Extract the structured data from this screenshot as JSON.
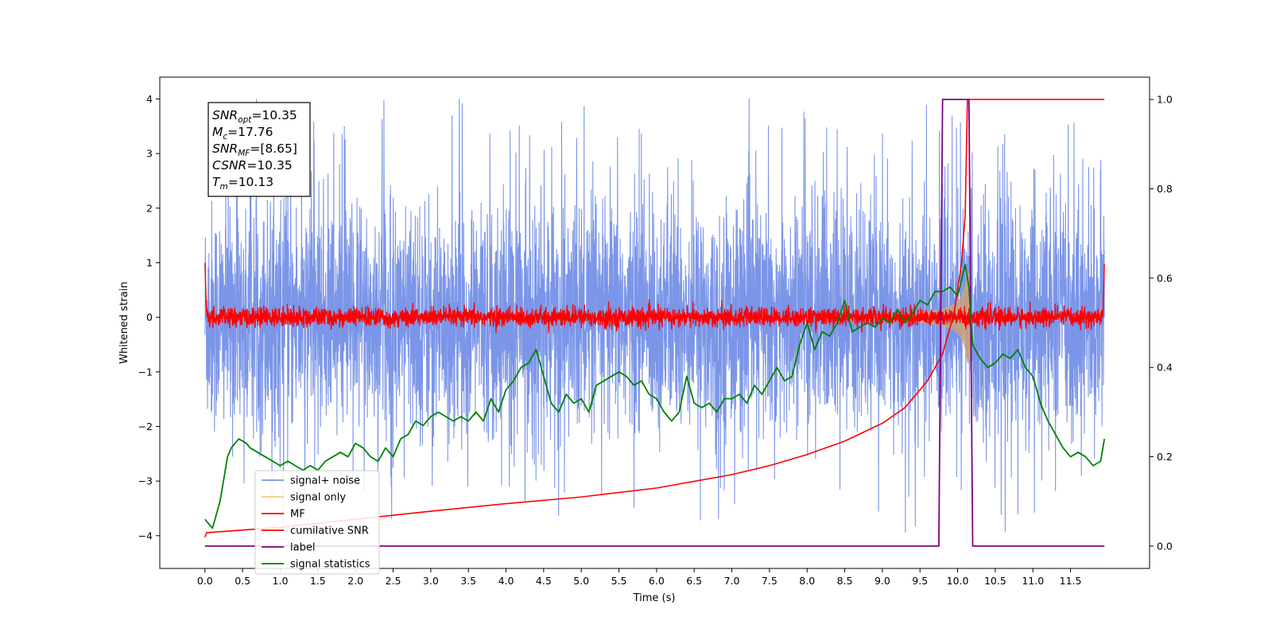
{
  "chart_data": {
    "type": "line",
    "title": "",
    "xlabel": "Time (s)",
    "ylabel": "Whitened strain",
    "xlim": [
      -0.6,
      12.55
    ],
    "ylim": [
      -4.6,
      4.4
    ],
    "y2lim": [
      -0.05,
      1.05
    ],
    "xticks": [
      "0.0",
      "0.5",
      "1.0",
      "1.5",
      "2.0",
      "2.5",
      "3.0",
      "3.5",
      "4.0",
      "4.5",
      "5.0",
      "5.5",
      "6.0",
      "6.5",
      "7.0",
      "7.5",
      "8.0",
      "8.5",
      "9.0",
      "9.5",
      "10.0",
      "10.5",
      "11.0",
      "11.5"
    ],
    "yticks": [
      "4",
      "3",
      "2",
      "1",
      "0",
      "−1",
      "−2",
      "−3",
      "−4"
    ],
    "y2ticks": [
      "1.0",
      "0.8",
      "0.6",
      "0.4",
      "0.2",
      "0.0"
    ],
    "grid": false,
    "legend_position": "lower-left",
    "stats_box": {
      "lines": [
        {
          "symbol": "SNR",
          "sub": "opt",
          "value": "=10.35"
        },
        {
          "symbol": "M",
          "sub": "c",
          "value": "=17.76"
        },
        {
          "symbol": "SNR",
          "sub": "MF",
          "value": "=[8.65]"
        },
        {
          "symbol": "CSNR",
          "sub": "",
          "value": "=10.35"
        },
        {
          "symbol": "T",
          "sub": "m",
          "value": "=10.13"
        }
      ]
    },
    "series": [
      {
        "name": "signal+ noise",
        "axis": "left",
        "color": "#7b95e8",
        "description_range": [
          -4.15,
          4.0
        ]
      },
      {
        "name": "signal only",
        "axis": "left",
        "color": "#f5c97a"
      },
      {
        "name": "MF",
        "axis": "left",
        "color": "#ff0000"
      },
      {
        "name": "cumilative SNR",
        "axis": "right",
        "color": "#ff0000",
        "x": [
          0.0,
          0.02,
          1,
          2,
          3,
          4,
          5,
          6,
          7,
          7.5,
          8,
          8.5,
          9,
          9.3,
          9.6,
          9.8,
          9.95,
          10.05,
          10.1,
          10.13,
          11.95
        ],
        "values": [
          0.02,
          0.03,
          0.042,
          0.06,
          0.078,
          0.095,
          0.11,
          0.13,
          0.16,
          0.18,
          0.205,
          0.235,
          0.275,
          0.31,
          0.37,
          0.43,
          0.52,
          0.63,
          0.74,
          1.0,
          1.0
        ]
      },
      {
        "name": "label",
        "axis": "right",
        "color": "#800080",
        "x": [
          0.0,
          9.75,
          9.8,
          10.15,
          10.2,
          11.95
        ],
        "values": [
          0.0,
          0.0,
          1.0,
          1.0,
          0.0,
          0.0
        ]
      },
      {
        "name": "signal statistics",
        "axis": "right",
        "color": "#008000",
        "x": [
          0.0,
          0.1,
          0.2,
          0.3,
          0.35,
          0.45,
          0.55,
          0.6,
          0.7,
          0.8,
          0.9,
          1.0,
          1.1,
          1.2,
          1.3,
          1.4,
          1.5,
          1.6,
          1.7,
          1.8,
          1.9,
          2.0,
          2.1,
          2.2,
          2.3,
          2.4,
          2.5,
          2.6,
          2.7,
          2.8,
          2.9,
          3.0,
          3.1,
          3.2,
          3.3,
          3.4,
          3.5,
          3.6,
          3.7,
          3.8,
          3.9,
          4.0,
          4.1,
          4.2,
          4.3,
          4.4,
          4.5,
          4.6,
          4.7,
          4.8,
          4.9,
          5.0,
          5.1,
          5.2,
          5.3,
          5.4,
          5.5,
          5.6,
          5.7,
          5.8,
          5.9,
          6.0,
          6.1,
          6.2,
          6.3,
          6.4,
          6.5,
          6.6,
          6.7,
          6.8,
          6.9,
          7.0,
          7.1,
          7.2,
          7.3,
          7.4,
          7.5,
          7.6,
          7.7,
          7.8,
          7.9,
          8.0,
          8.1,
          8.2,
          8.3,
          8.4,
          8.5,
          8.6,
          8.7,
          8.8,
          8.9,
          9.0,
          9.1,
          9.2,
          9.3,
          9.4,
          9.5,
          9.6,
          9.7,
          9.8,
          9.9,
          10.0,
          10.1,
          10.15,
          10.2,
          10.3,
          10.4,
          10.5,
          10.6,
          10.7,
          10.8,
          10.9,
          11.0,
          11.1,
          11.2,
          11.3,
          11.4,
          11.5,
          11.6,
          11.7,
          11.8,
          11.9,
          11.95
        ],
        "values": [
          0.06,
          0.04,
          0.1,
          0.2,
          0.22,
          0.24,
          0.23,
          0.22,
          0.21,
          0.2,
          0.19,
          0.18,
          0.19,
          0.18,
          0.17,
          0.18,
          0.17,
          0.19,
          0.2,
          0.21,
          0.2,
          0.23,
          0.22,
          0.2,
          0.19,
          0.22,
          0.2,
          0.24,
          0.25,
          0.28,
          0.27,
          0.29,
          0.3,
          0.29,
          0.28,
          0.29,
          0.28,
          0.3,
          0.28,
          0.33,
          0.3,
          0.35,
          0.37,
          0.4,
          0.41,
          0.44,
          0.38,
          0.32,
          0.3,
          0.34,
          0.32,
          0.33,
          0.3,
          0.36,
          0.37,
          0.38,
          0.39,
          0.38,
          0.36,
          0.37,
          0.34,
          0.33,
          0.3,
          0.28,
          0.3,
          0.38,
          0.32,
          0.31,
          0.32,
          0.3,
          0.33,
          0.33,
          0.34,
          0.32,
          0.36,
          0.34,
          0.37,
          0.4,
          0.37,
          0.38,
          0.45,
          0.5,
          0.44,
          0.48,
          0.47,
          0.5,
          0.55,
          0.48,
          0.49,
          0.5,
          0.49,
          0.51,
          0.5,
          0.53,
          0.5,
          0.52,
          0.55,
          0.54,
          0.57,
          0.57,
          0.58,
          0.56,
          0.63,
          0.58,
          0.45,
          0.42,
          0.4,
          0.41,
          0.43,
          0.42,
          0.44,
          0.4,
          0.38,
          0.32,
          0.28,
          0.25,
          0.22,
          0.2,
          0.21,
          0.2,
          0.18,
          0.19,
          0.24
        ]
      }
    ]
  }
}
